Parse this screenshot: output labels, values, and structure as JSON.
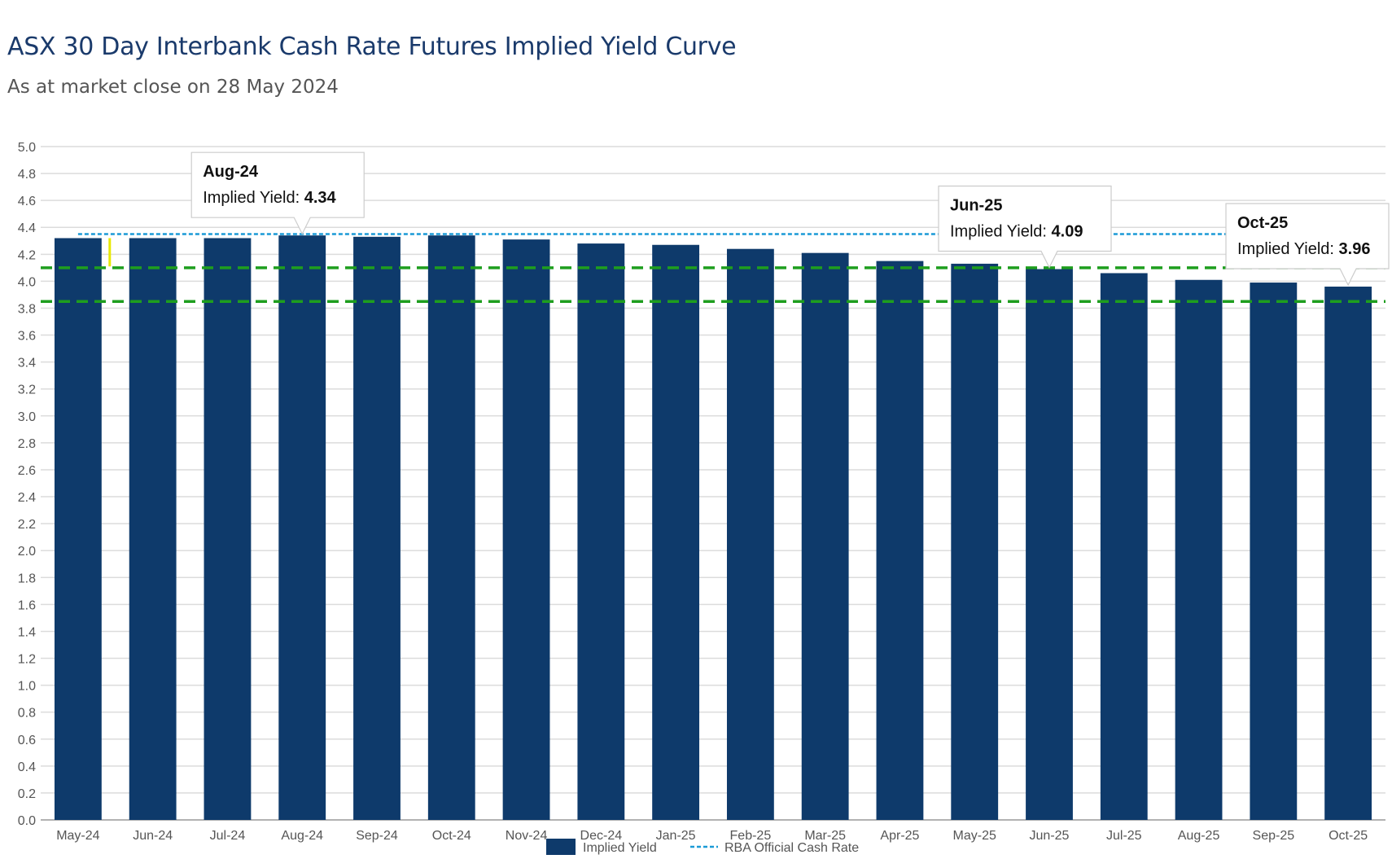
{
  "header": {
    "title": "ASX 30 Day Interbank Cash Rate Futures Implied Yield Curve",
    "subtitle": "As at market close on 28 May 2024"
  },
  "chart_data": {
    "type": "bar",
    "title": "ASX 30 Day Interbank Cash Rate Futures Implied Yield Curve",
    "subtitle": "As at market close on 28 May 2024",
    "xlabel": "",
    "ylabel": "",
    "ylim": [
      0,
      5
    ],
    "yticks": [
      "0.0",
      "0.2",
      "0.4",
      "0.6",
      "0.8",
      "1.0",
      "1.2",
      "1.4",
      "1.6",
      "1.8",
      "2.0",
      "2.2",
      "2.4",
      "2.6",
      "2.8",
      "3.0",
      "3.2",
      "3.4",
      "3.6",
      "3.8",
      "4.0",
      "4.2",
      "4.4",
      "4.6",
      "4.8",
      "5.0"
    ],
    "grid": true,
    "legend_position": "bottom-center",
    "categories": [
      "May-24",
      "Jun-24",
      "Jul-24",
      "Aug-24",
      "Sep-24",
      "Oct-24",
      "Nov-24",
      "Dec-24",
      "Jan-25",
      "Feb-25",
      "Mar-25",
      "Apr-25",
      "May-25",
      "Jun-25",
      "Jul-25",
      "Aug-25",
      "Sep-25",
      "Oct-25"
    ],
    "series": [
      {
        "name": "Implied Yield",
        "color": "#0e3a6b",
        "values": [
          4.32,
          4.32,
          4.32,
          4.34,
          4.33,
          4.34,
          4.31,
          4.28,
          4.27,
          4.24,
          4.21,
          4.15,
          4.13,
          4.09,
          4.06,
          4.01,
          3.99,
          3.96
        ]
      },
      {
        "name": "RBA Official Cash Rate",
        "type": "line",
        "style": "dotted",
        "color": "#1a9ad6",
        "value": 4.35
      }
    ],
    "reference_lines": [
      {
        "value": 4.1,
        "color": "#1e9e1e",
        "style": "dashed"
      },
      {
        "value": 3.85,
        "color": "#1e9e1e",
        "style": "dashed"
      }
    ],
    "marker": {
      "category": "May-24",
      "from": 4.32,
      "to": 4.11,
      "color": "#e8e800"
    },
    "tooltips": [
      {
        "category": "Aug-24",
        "title": "Aug-24",
        "label": "Implied Yield:",
        "value": "4.34"
      },
      {
        "category": "Jun-25",
        "title": "Jun-25",
        "label": "Implied Yield:",
        "value": "4.09"
      },
      {
        "category": "Oct-25",
        "title": "Oct-25",
        "label": "Implied Yield:",
        "value": "3.96"
      }
    ]
  }
}
